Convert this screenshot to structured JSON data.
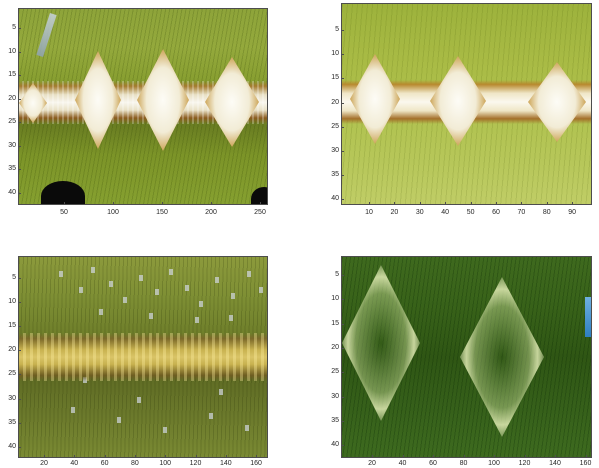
{
  "panels": [
    {
      "id": "top-left",
      "y_ticks": [
        "5",
        "10",
        "15",
        "20",
        "25",
        "30",
        "35",
        "40"
      ],
      "x_ticks": [
        "50",
        "100",
        "150",
        "200",
        "250"
      ]
    },
    {
      "id": "top-right",
      "y_ticks": [
        "5",
        "10",
        "15",
        "20",
        "25",
        "30",
        "35",
        "40"
      ],
      "x_ticks": [
        "10",
        "20",
        "30",
        "40",
        "50",
        "60",
        "70",
        "80",
        "90"
      ]
    },
    {
      "id": "bottom-left",
      "y_ticks": [
        "5",
        "10",
        "15",
        "20",
        "25",
        "30",
        "35",
        "40"
      ],
      "x_ticks": [
        "20",
        "40",
        "60",
        "80",
        "100",
        "120",
        "140",
        "160"
      ]
    },
    {
      "id": "bottom-right",
      "y_ticks": [
        "5",
        "10",
        "15",
        "20",
        "25",
        "30",
        "35",
        "40"
      ],
      "x_ticks": [
        "20",
        "40",
        "60",
        "80",
        "100",
        "120",
        "140",
        "160"
      ]
    }
  ],
  "colors": {
    "axis": "#4d4d4d",
    "tick_text": "#262626"
  }
}
